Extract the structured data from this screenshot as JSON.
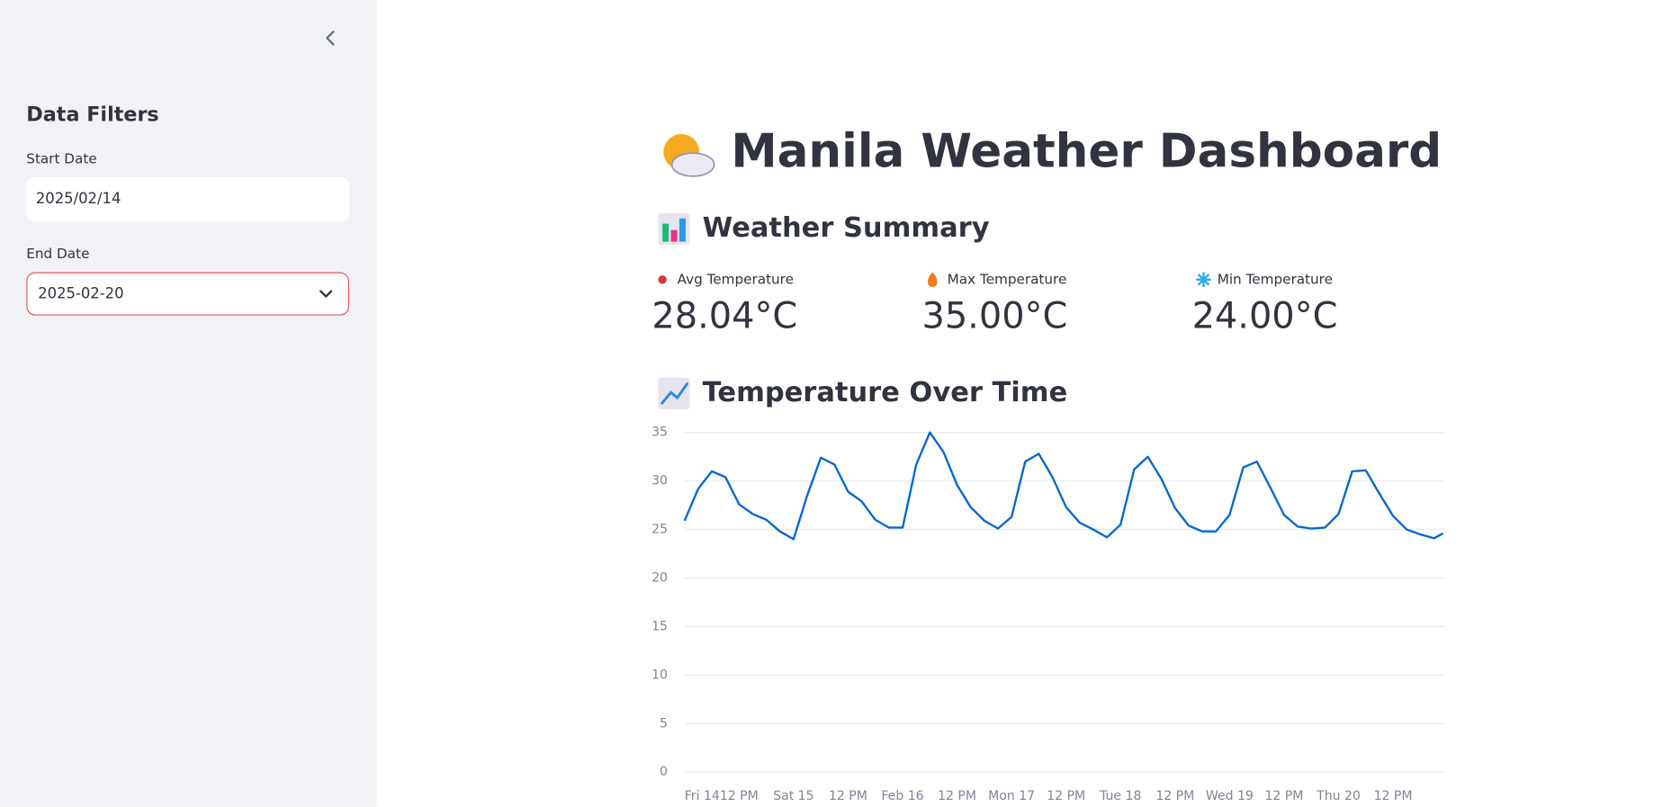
{
  "sidebar": {
    "title": "Data Filters",
    "start_date": {
      "label": "Start Date",
      "value": "2025/02/14"
    },
    "end_date": {
      "label": "End Date",
      "value": "2025-02-20"
    }
  },
  "header": {
    "title": "Manila Weather Dashboard"
  },
  "summary": {
    "title": "Weather Summary",
    "metrics": [
      {
        "label": "Avg Temperature",
        "value": "28.04°C"
      },
      {
        "label": "Max Temperature",
        "value": "35.00°C"
      },
      {
        "label": "Min Temperature",
        "value": "24.00°C"
      }
    ]
  },
  "chart_data": {
    "type": "line",
    "title": "Temperature Over Time",
    "color": "#0068c9",
    "x": [
      0,
      3,
      6,
      9,
      12,
      15,
      18,
      21,
      24,
      27,
      30,
      33,
      36,
      39,
      42,
      45,
      48,
      51,
      54,
      57,
      60,
      63,
      66,
      69,
      72,
      75,
      78,
      81,
      84,
      87,
      90,
      93,
      96,
      99,
      102,
      105,
      108,
      111,
      114,
      117,
      120,
      123,
      126,
      129,
      132,
      135,
      138,
      141,
      144,
      147,
      150,
      153,
      156,
      159,
      162,
      165,
      167
    ],
    "values": [
      25.9,
      29.2,
      31.0,
      30.4,
      27.6,
      26.6,
      26.0,
      24.8,
      24.0,
      28.5,
      32.4,
      31.7,
      28.9,
      27.9,
      26.0,
      25.2,
      25.2,
      31.7,
      35.0,
      33.0,
      29.6,
      27.3,
      25.9,
      25.1,
      26.3,
      32.0,
      32.8,
      30.4,
      27.3,
      25.7,
      25.0,
      24.2,
      25.5,
      31.2,
      32.5,
      30.2,
      27.2,
      25.4,
      24.8,
      24.8,
      26.5,
      31.4,
      32.0,
      29.3,
      26.5,
      25.3,
      25.1,
      25.2,
      26.6,
      31.0,
      31.1,
      28.7,
      26.4,
      25.0,
      24.5,
      24.1,
      24.6
    ],
    "xlim": [
      0,
      167
    ],
    "xticks": [
      {
        "value": 0,
        "label": "Fri 14"
      },
      {
        "value": 12,
        "label": "12 PM"
      },
      {
        "value": 24,
        "label": "Sat 15"
      },
      {
        "value": 36,
        "label": "12 PM"
      },
      {
        "value": 48,
        "label": "Feb 16"
      },
      {
        "value": 60,
        "label": "12 PM"
      },
      {
        "value": 72,
        "label": "Mon 17"
      },
      {
        "value": 84,
        "label": "12 PM"
      },
      {
        "value": 96,
        "label": "Tue 18"
      },
      {
        "value": 108,
        "label": "12 PM"
      },
      {
        "value": 120,
        "label": "Wed 19"
      },
      {
        "value": 132,
        "label": "12 PM"
      },
      {
        "value": 144,
        "label": "Thu 20"
      },
      {
        "value": 156,
        "label": "12 PM"
      }
    ],
    "ylim": [
      0,
      35
    ],
    "yticks": [
      0,
      5,
      10,
      15,
      20,
      25,
      30,
      35
    ],
    "grid": true
  }
}
